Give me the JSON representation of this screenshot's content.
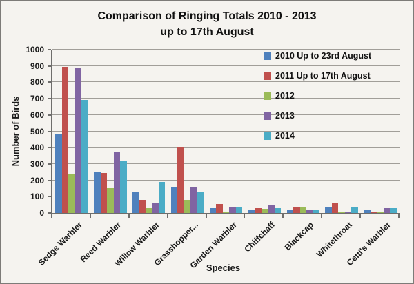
{
  "window": {
    "title_line1": "Comparison of Ringing Totals 2010 - 2013",
    "title_line2": "up to 17th August"
  },
  "chart_data": {
    "type": "bar",
    "title": "Comparison of Ringing Totals 2010 - 2013 up to 17th August",
    "categories": [
      "Sedge Warbler",
      "Reed Warbler",
      "Willow Warbler",
      "Grasshopper...",
      "Garden Warbler",
      "Chiffchaff",
      "Blackcap",
      "Whitethroat",
      "Cetti's Warbler"
    ],
    "series": [
      {
        "name": "2010 Up to 23rd August",
        "color": "#4F81BD",
        "values": [
          480,
          255,
          130,
          155,
          30,
          20,
          20,
          35,
          20
        ]
      },
      {
        "name": "2011 Up to 17th August",
        "color": "#C0504D",
        "values": [
          895,
          245,
          80,
          405,
          55,
          30,
          40,
          65,
          10
        ]
      },
      {
        "name": "2012",
        "color": "#9BBB59",
        "values": [
          240,
          150,
          30,
          80,
          10,
          25,
          35,
          5,
          5
        ]
      },
      {
        "name": "2013",
        "color": "#8064A2",
        "values": [
          890,
          370,
          60,
          155,
          40,
          45,
          15,
          10,
          30
        ]
      },
      {
        "name": "2014",
        "color": "#4BACC6",
        "values": [
          690,
          315,
          190,
          130,
          35,
          30,
          20,
          35,
          30
        ]
      }
    ],
    "xlabel": "Species",
    "ylabel": "Number of Birds",
    "ylim": [
      0,
      1000
    ],
    "ytick_step": 100,
    "grid": true,
    "legend_position": "inside-top-right"
  },
  "colors": {
    "background": "#f5f3ef",
    "gridline": "#a19e99",
    "axis": "#6f6e6c",
    "text": "#1a1a1a",
    "frame_border": "#7d7b78"
  }
}
